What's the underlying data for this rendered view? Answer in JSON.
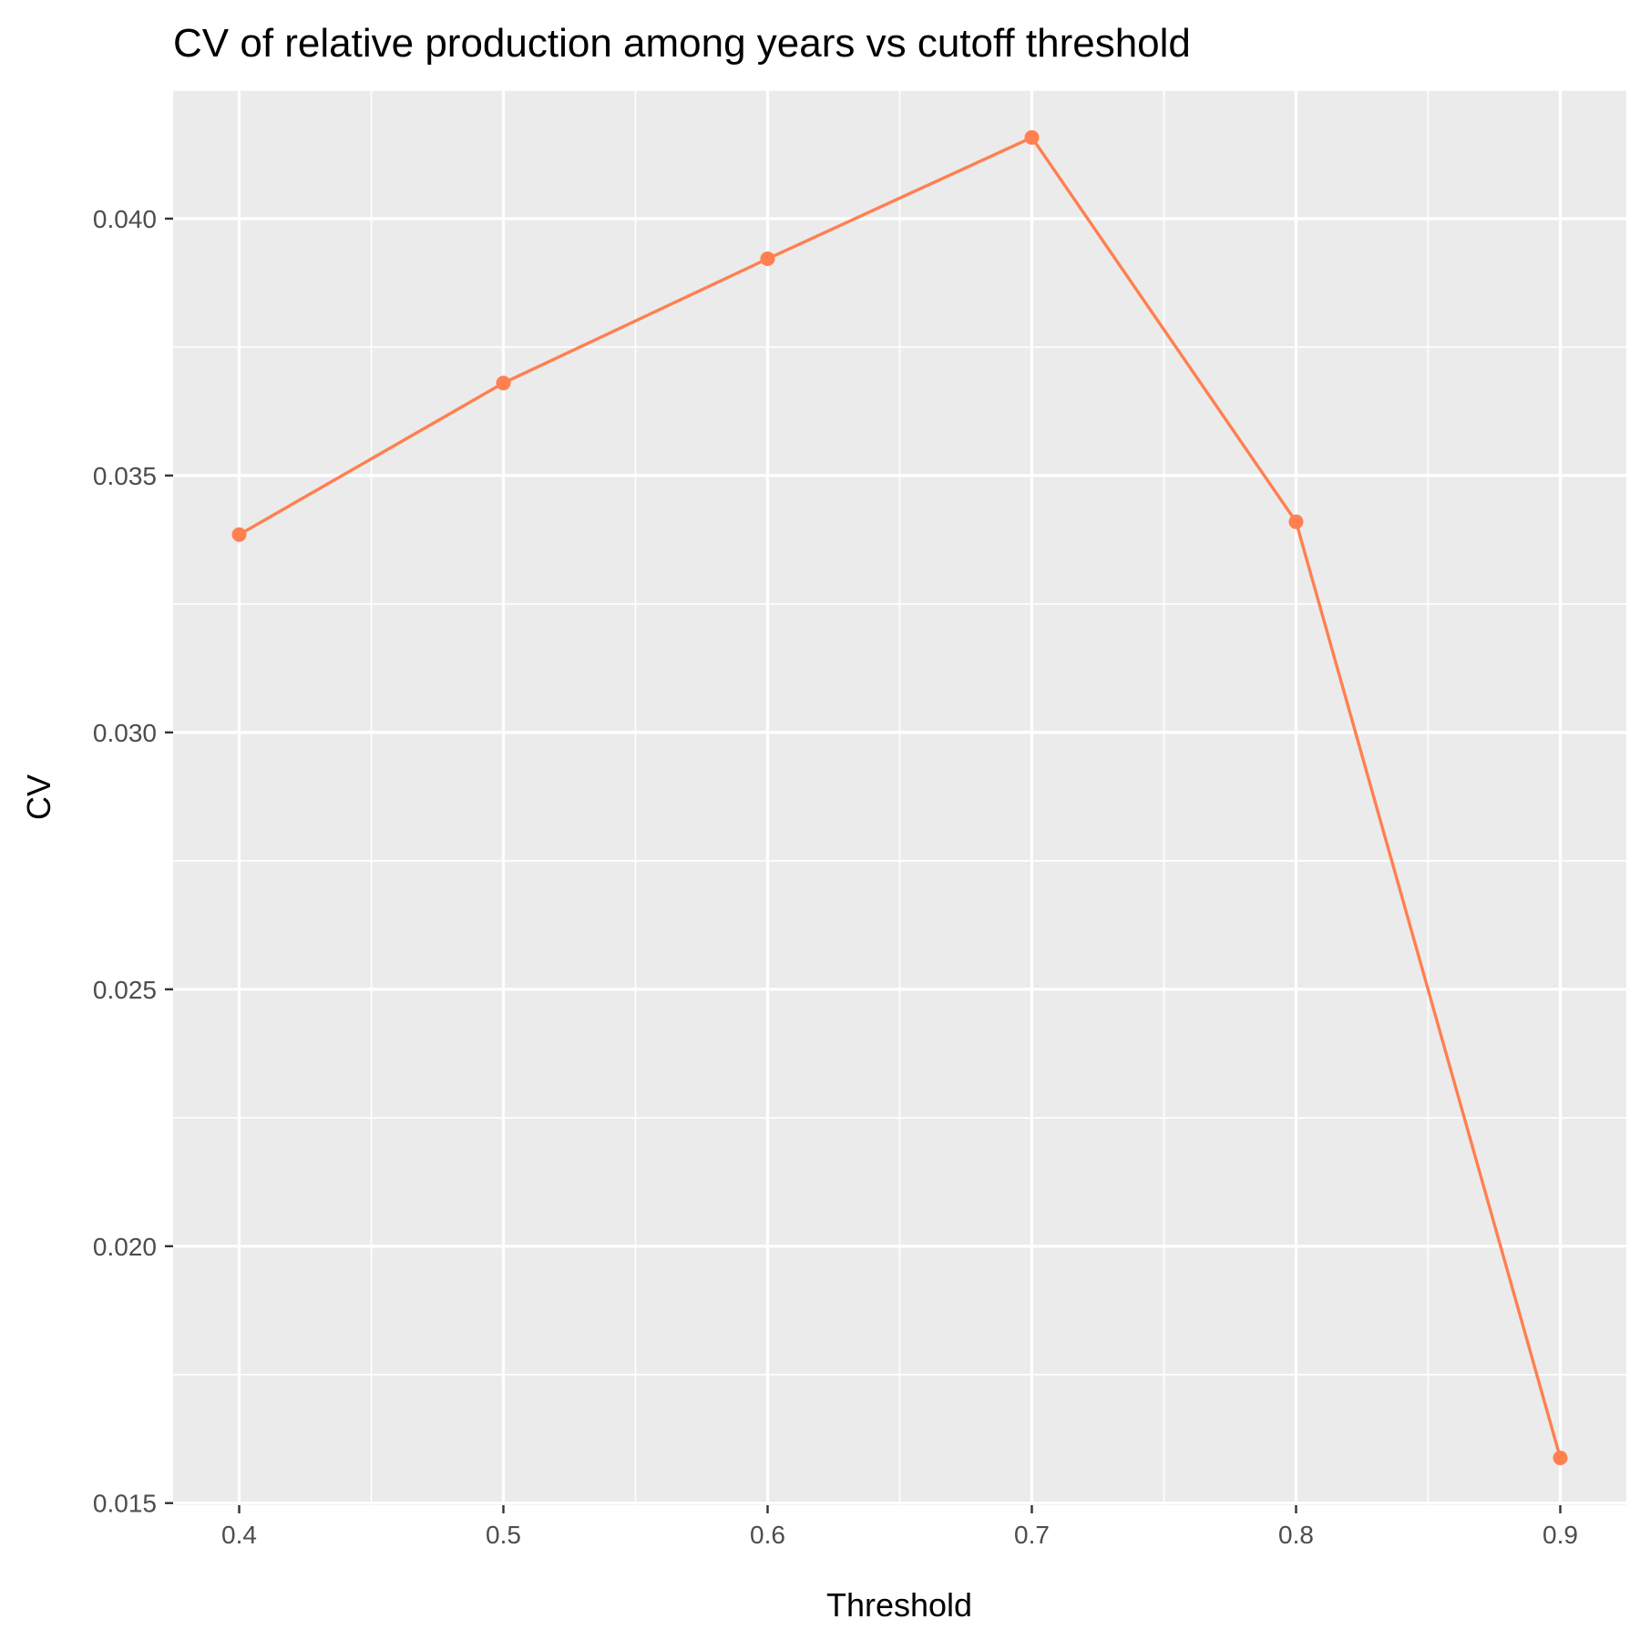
{
  "chart_data": {
    "type": "line",
    "title": "CV of relative production among years vs cutoff threshold",
    "xlabel": "Threshold",
    "ylabel": "CV",
    "x": [
      0.4,
      0.5,
      0.6,
      0.7,
      0.8,
      0.9
    ],
    "series": [
      {
        "values": [
          0.03385,
          0.0368,
          0.03922,
          0.04158,
          0.0341,
          0.01588
        ]
      }
    ],
    "xlim": [
      0.375,
      0.925
    ],
    "ylim": [
      0.01496,
      0.0425
    ],
    "x_ticks": [
      {
        "value": 0.4,
        "label": "0.4"
      },
      {
        "value": 0.5,
        "label": "0.5"
      },
      {
        "value": 0.6,
        "label": "0.6"
      },
      {
        "value": 0.7,
        "label": "0.7"
      },
      {
        "value": 0.8,
        "label": "0.8"
      },
      {
        "value": 0.9,
        "label": "0.9"
      }
    ],
    "x_minor": [
      0.45,
      0.55,
      0.65,
      0.75,
      0.85
    ],
    "y_ticks": [
      {
        "value": 0.015,
        "label": "0.015"
      },
      {
        "value": 0.02,
        "label": "0.020"
      },
      {
        "value": 0.025,
        "label": "0.025"
      },
      {
        "value": 0.03,
        "label": "0.030"
      },
      {
        "value": 0.035,
        "label": "0.035"
      },
      {
        "value": 0.04,
        "label": "0.040"
      }
    ],
    "y_minor": [
      0.0175,
      0.0225,
      0.0275,
      0.0325,
      0.0375,
      0.0425
    ],
    "grid": true,
    "legend": "none",
    "colors": {
      "series": "#ff7f50",
      "panel": "#ebebeb",
      "grid": "#ffffff",
      "tick_text": "#4d4d4d",
      "tick_mark": "#333333"
    }
  }
}
